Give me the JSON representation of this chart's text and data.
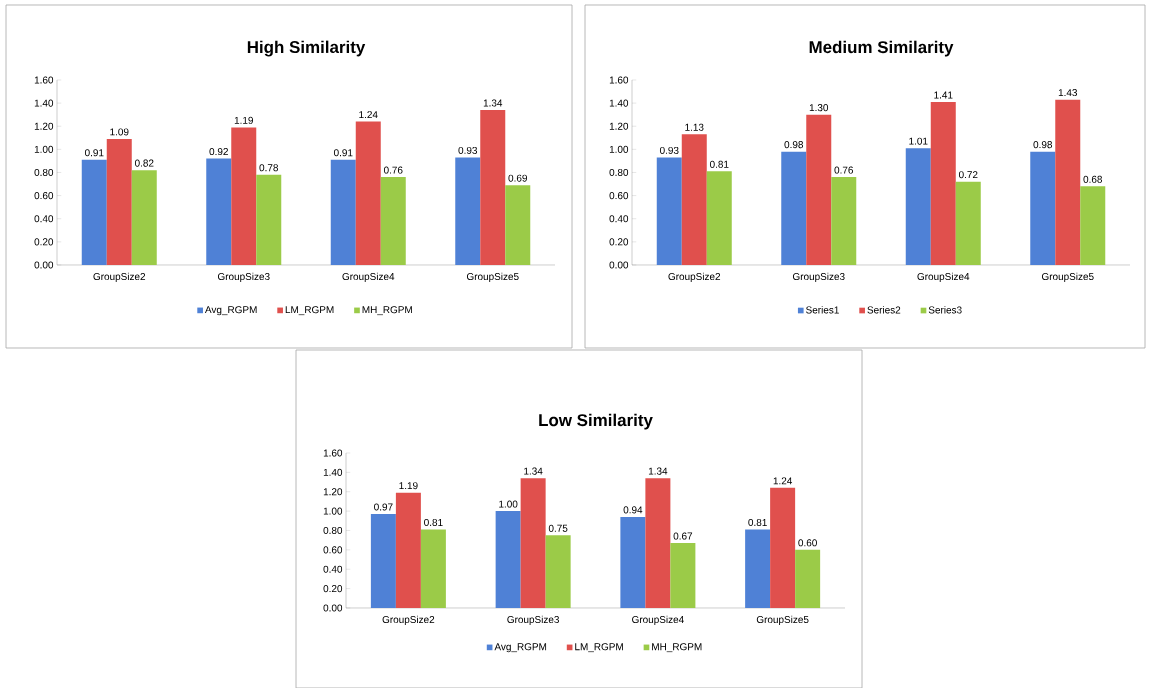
{
  "chart_data": [
    {
      "type": "bar",
      "title": "High Similarity",
      "categories": [
        "GroupSize2",
        "GroupSize3",
        "GroupSize4",
        "GroupSize5"
      ],
      "series": [
        {
          "name": "Avg_RGPM",
          "color": "#4f81d6",
          "values": [
            0.91,
            0.92,
            0.91,
            0.93
          ],
          "value_labels": [
            "0.91",
            "0.92",
            "0.91",
            "0.93"
          ]
        },
        {
          "name": "LM_RGPM",
          "color": "#e0504d",
          "values": [
            1.09,
            1.19,
            1.24,
            1.34
          ],
          "value_labels": [
            "1.09",
            "1.19",
            "1.24",
            "1.34"
          ]
        },
        {
          "name": "MH_RGPM",
          "color": "#9bcb48",
          "values": [
            0.82,
            0.78,
            0.76,
            0.69
          ],
          "value_labels": [
            "0.82",
            "0.78",
            "0.76",
            "0.69"
          ]
        }
      ],
      "ylim": [
        0,
        1.6
      ],
      "yticks": [
        {
          "value": 0,
          "label": "0.00"
        },
        {
          "value": 0.2,
          "label": "0.20"
        },
        {
          "value": 0.4,
          "label": "0.40"
        },
        {
          "value": 0.6,
          "label": "0.60"
        },
        {
          "value": 0.8,
          "label": "0.80"
        },
        {
          "value": 1.0,
          "label": "1.00"
        },
        {
          "value": 1.2,
          "label": "1.20"
        },
        {
          "value": 1.4,
          "label": "1.40"
        },
        {
          "value": 1.6,
          "label": "1.60"
        }
      ],
      "legend": "bottom"
    },
    {
      "type": "bar",
      "title": "Medium Similarity",
      "categories": [
        "GroupSize2",
        "GroupSize3",
        "GroupSize4",
        "GroupSize5"
      ],
      "series": [
        {
          "name": "Series1",
          "color": "#4f81d6",
          "values": [
            0.93,
            0.98,
            1.01,
            0.98
          ],
          "value_labels": [
            "0.93",
            "0.98",
            "1.01",
            "0.98"
          ]
        },
        {
          "name": "Series2",
          "color": "#e0504d",
          "values": [
            1.13,
            1.3,
            1.41,
            1.43
          ],
          "value_labels": [
            "1.13",
            "1.30",
            "1.41",
            "1.43"
          ]
        },
        {
          "name": "Series3",
          "color": "#9bcb48",
          "values": [
            0.81,
            0.76,
            0.72,
            0.68
          ],
          "value_labels": [
            "0.81",
            "0.76",
            "0.72",
            "0.68"
          ]
        }
      ],
      "ylim": [
        0,
        1.6
      ],
      "yticks": [
        {
          "value": 0,
          "label": "0.00"
        },
        {
          "value": 0.2,
          "label": "0.20"
        },
        {
          "value": 0.4,
          "label": "0.40"
        },
        {
          "value": 0.6,
          "label": "0.60"
        },
        {
          "value": 0.8,
          "label": "0.80"
        },
        {
          "value": 1.0,
          "label": "1.00"
        },
        {
          "value": 1.2,
          "label": "1.20"
        },
        {
          "value": 1.4,
          "label": "1.40"
        },
        {
          "value": 1.6,
          "label": "1.60"
        }
      ],
      "legend": "bottom"
    },
    {
      "type": "bar",
      "title": "Low Similarity",
      "categories": [
        "GroupSize2",
        "GroupSize3",
        "GroupSize4",
        "GroupSize5"
      ],
      "series": [
        {
          "name": "Avg_RGPM",
          "color": "#4f81d6",
          "values": [
            0.97,
            1.0,
            0.94,
            0.81
          ],
          "value_labels": [
            "0.97",
            "1.00",
            "0.94",
            "0.81"
          ]
        },
        {
          "name": "LM_RGPM",
          "color": "#e0504d",
          "values": [
            1.19,
            1.34,
            1.34,
            1.24
          ],
          "value_labels": [
            "1.19",
            "1.34",
            "1.34",
            "1.24"
          ]
        },
        {
          "name": "MH_RGPM",
          "color": "#9bcb48",
          "values": [
            0.81,
            0.75,
            0.67,
            0.6
          ],
          "value_labels": [
            "0.81",
            "0.75",
            "0.67",
            "0.60"
          ]
        }
      ],
      "ylim": [
        0,
        1.6
      ],
      "yticks": [
        {
          "value": 0,
          "label": "0.00"
        },
        {
          "value": 0.2,
          "label": "0.20"
        },
        {
          "value": 0.4,
          "label": "0.40"
        },
        {
          "value": 0.6,
          "label": "0.60"
        },
        {
          "value": 0.8,
          "label": "0.80"
        },
        {
          "value": 1.0,
          "label": "1.00"
        },
        {
          "value": 1.2,
          "label": "1.20"
        },
        {
          "value": 1.4,
          "label": "1.40"
        },
        {
          "value": 1.6,
          "label": "1.60"
        }
      ],
      "legend": "bottom"
    }
  ]
}
